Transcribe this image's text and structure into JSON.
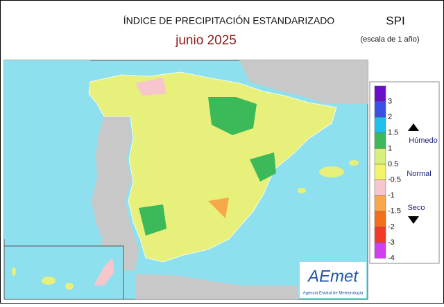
{
  "header": {
    "title": "ÍNDICE DE PRECIPITACIÓN ESTANDARIZADO",
    "subtitle": "junio  2025",
    "index": "SPI",
    "scale": "(escala de 1 año)"
  },
  "legend": {
    "labels": [
      3,
      2,
      1.5,
      1,
      0.5,
      -0.5,
      -1,
      -1.5,
      -2,
      -3,
      -4
    ],
    "colors": [
      "#6a0dcc",
      "#3a4ee8",
      "#1ec0ee",
      "#3cba5a",
      "#d8f07a",
      "#f4f46a",
      "#f7c6cc",
      "#f7a84a",
      "#f36f1a",
      "#f23a2a",
      "#d040ee"
    ],
    "wet": "Húmedo",
    "normal": "Normal",
    "dry": "Seco"
  },
  "logo": {
    "name": "AEmet",
    "agency": "Agencia Estatal de Meteorología"
  }
}
